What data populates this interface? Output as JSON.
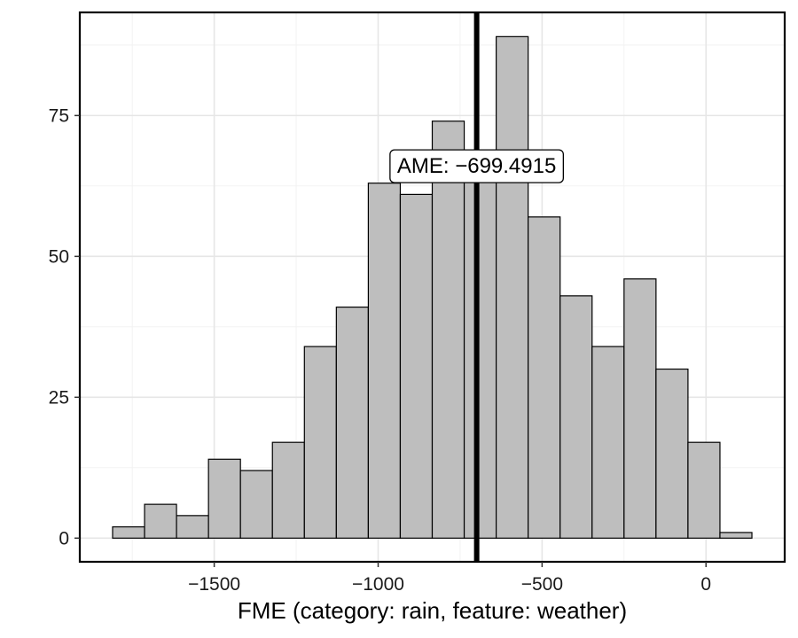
{
  "chart_data": {
    "type": "bar",
    "subtype": "histogram",
    "xlabel": "FME (category: rain, feature: weather)",
    "ylabel": "",
    "title": "",
    "bin_width": 97.5,
    "bins": [
      {
        "x0": -1810,
        "x1": -1712.5,
        "count": 2
      },
      {
        "x0": -1712.5,
        "x1": -1615,
        "count": 6
      },
      {
        "x0": -1615,
        "x1": -1517.5,
        "count": 4
      },
      {
        "x0": -1517.5,
        "x1": -1420,
        "count": 14
      },
      {
        "x0": -1420,
        "x1": -1322.5,
        "count": 12
      },
      {
        "x0": -1322.5,
        "x1": -1225,
        "count": 17
      },
      {
        "x0": -1225,
        "x1": -1127.5,
        "count": 34
      },
      {
        "x0": -1127.5,
        "x1": -1030,
        "count": 41
      },
      {
        "x0": -1030,
        "x1": -932.5,
        "count": 63
      },
      {
        "x0": -932.5,
        "x1": -835,
        "count": 61
      },
      {
        "x0": -835,
        "x1": -737.5,
        "count": 74
      },
      {
        "x0": -737.5,
        "x1": -640,
        "count": 65
      },
      {
        "x0": -640,
        "x1": -542.5,
        "count": 89
      },
      {
        "x0": -542.5,
        "x1": -445,
        "count": 57
      },
      {
        "x0": -445,
        "x1": -347.5,
        "count": 43
      },
      {
        "x0": -347.5,
        "x1": -250,
        "count": 34
      },
      {
        "x0": -250,
        "x1": -152.5,
        "count": 46
      },
      {
        "x0": -152.5,
        "x1": -55,
        "count": 30
      },
      {
        "x0": -55,
        "x1": 42.5,
        "count": 17
      },
      {
        "x0": 42.5,
        "x1": 140,
        "count": 1
      }
    ],
    "xlim": [
      -1910,
      240
    ],
    "ylim": [
      -4.2,
      93.3
    ],
    "xticks": [
      -1500,
      -1000,
      -500,
      0
    ],
    "xtick_labels": [
      "−1500",
      "−1000",
      "−500",
      "0"
    ],
    "yticks": [
      0,
      25,
      50,
      75
    ],
    "ytick_labels": [
      "0",
      "25",
      "50",
      "75"
    ],
    "grid": true,
    "vline": {
      "x": -699.4915,
      "label": "AME: −699.4915",
      "label_y": 66
    }
  }
}
